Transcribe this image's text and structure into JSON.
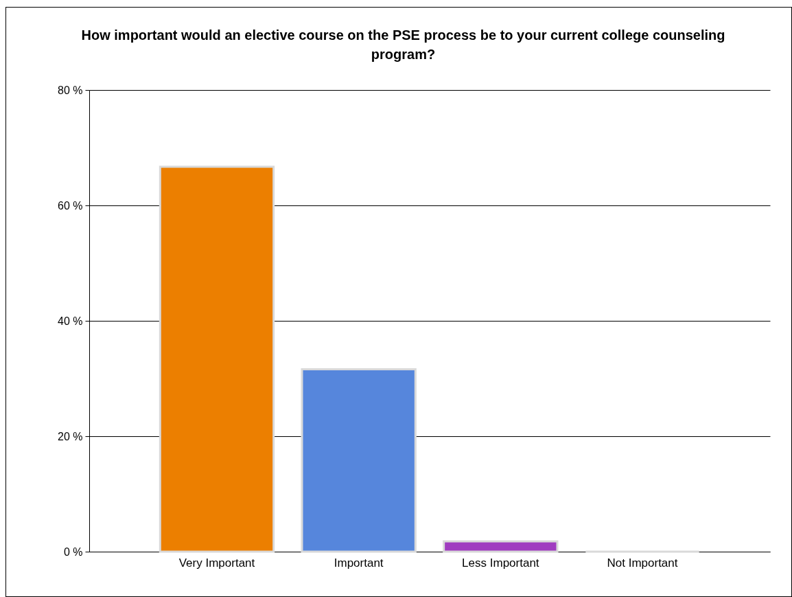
{
  "chart_data": {
    "type": "bar",
    "title": "How important would an elective course on the PSE process be to your current college counseling program?",
    "categories": [
      "Very Important",
      "Important",
      "Less Important",
      "Not Important"
    ],
    "values": [
      66.7,
      31.6,
      1.8,
      0
    ],
    "colors": [
      "#ec7f00",
      "#5686dc",
      "#a03cc0",
      "#d9d9d9"
    ],
    "ylim": [
      0,
      80
    ],
    "yticks": [
      {
        "value": 0,
        "label": "0 %"
      },
      {
        "value": 20,
        "label": "20 %"
      },
      {
        "value": 40,
        "label": "40 %"
      },
      {
        "value": 60,
        "label": "60 %"
      },
      {
        "value": 80,
        "label": "80 %"
      }
    ],
    "grid": "y",
    "legend": false
  }
}
